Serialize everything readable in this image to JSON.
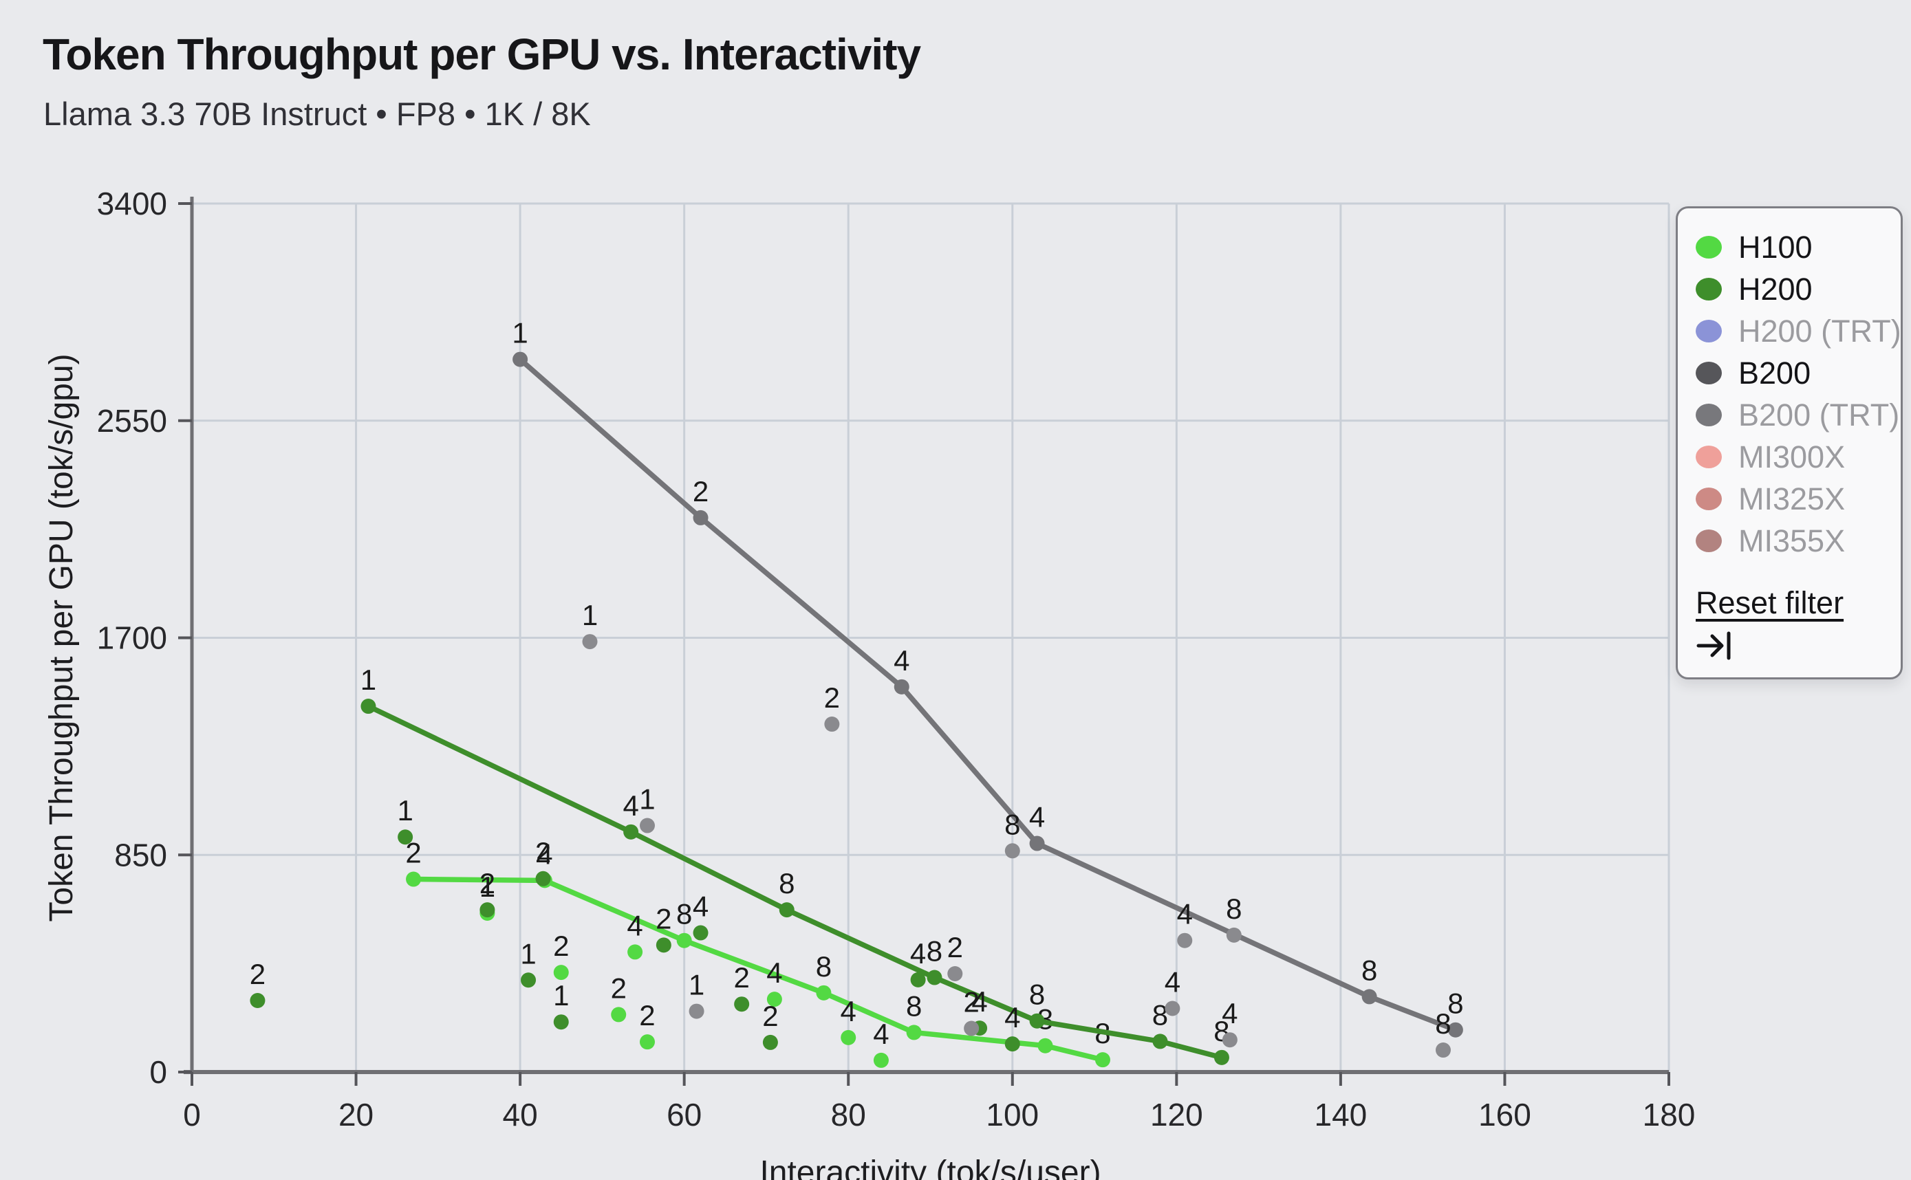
{
  "title": "Token Throughput per GPU vs. Interactivity",
  "subtitle": "Llama 3.3 70B Instruct • FP8 • 1K / 8K",
  "colors": {
    "background": "#e9eaed",
    "grid": "#c9cfd7",
    "axis_spine": "#6f6f73",
    "tick_text": "#27272a",
    "axis_title_text": "#1d1d20",
    "point_label_text": "#1a1a1a",
    "legend_bg": "#f9f9fa",
    "legend_border": "#7e7e84",
    "legend_text_active": "#141417",
    "legend_text_inactive": "#9b9b9f"
  },
  "legend": {
    "reset_label": "Reset filter",
    "collapse_icon": "arrow-to-bar",
    "items": [
      {
        "label": "H100",
        "color": "#53d943",
        "active": true
      },
      {
        "label": "H200",
        "color": "#3e8e2b",
        "active": true
      },
      {
        "label": "H200 (TRT)",
        "color": "#8b93d7",
        "active": false
      },
      {
        "label": "B200",
        "color": "#56565a",
        "active": true
      },
      {
        "label": "B200 (TRT)",
        "color": "#78787c",
        "active": false
      },
      {
        "label": "MI300X",
        "color": "#efa09a",
        "active": false
      },
      {
        "label": "MI325X",
        "color": "#cd8a85",
        "active": false
      },
      {
        "label": "MI355X",
        "color": "#b28380",
        "active": false
      }
    ]
  },
  "chart_data": {
    "type": "scatter",
    "title": "Token Throughput per GPU vs. Interactivity",
    "xlabel": "Interactivity (tok/s/user)",
    "ylabel": "Token Throughput per GPU (tok/s/gpu)",
    "xlim": [
      0,
      180
    ],
    "ylim": [
      0,
      3400
    ],
    "xticks": [
      0,
      20,
      40,
      60,
      80,
      100,
      120,
      140,
      160,
      180
    ],
    "yticks": [
      0,
      850,
      1700,
      2550,
      3400
    ],
    "grid": true,
    "legend_position": "top-right",
    "point_labels_mean": "GPU / tensor-parallel count per config",
    "series": [
      {
        "name": "H100",
        "color": "#53d943",
        "scatter_color": "#53d943",
        "line": [
          {
            "x": 27,
            "y": 755,
            "label": "2"
          },
          {
            "x": 43,
            "y": 750,
            "label": "4"
          },
          {
            "x": 60,
            "y": 515,
            "label": "8"
          },
          {
            "x": 77,
            "y": 310,
            "label": "8"
          },
          {
            "x": 88,
            "y": 155,
            "label": "8"
          },
          {
            "x": 104,
            "y": 103,
            "label": "8"
          },
          {
            "x": 111,
            "y": 48,
            "label": "8"
          }
        ],
        "scatter": [
          {
            "x": 36,
            "y": 622,
            "label": "1"
          },
          {
            "x": 45,
            "y": 390,
            "label": "2"
          },
          {
            "x": 52,
            "y": 225,
            "label": "2"
          },
          {
            "x": 54,
            "y": 470,
            "label": "4"
          },
          {
            "x": 55.5,
            "y": 118,
            "label": "2"
          },
          {
            "x": 71,
            "y": 285,
            "label": "4"
          },
          {
            "x": 80,
            "y": 135,
            "label": "4"
          },
          {
            "x": 84,
            "y": 46,
            "label": "4"
          }
        ]
      },
      {
        "name": "H200",
        "color": "#3e8e2b",
        "scatter_color": "#3e8e2b",
        "line": [
          {
            "x": 21.5,
            "y": 1432,
            "label": "1"
          },
          {
            "x": 53.5,
            "y": 940,
            "label": "4"
          },
          {
            "x": 72.5,
            "y": 635,
            "label": "8"
          },
          {
            "x": 90.5,
            "y": 370,
            "label": "8"
          },
          {
            "x": 103,
            "y": 200,
            "label": "8"
          },
          {
            "x": 118,
            "y": 120,
            "label": "8"
          },
          {
            "x": 125.5,
            "y": 57,
            "label": "8"
          }
        ],
        "scatter": [
          {
            "x": 8,
            "y": 280,
            "label": "2"
          },
          {
            "x": 26,
            "y": 920,
            "label": "1"
          },
          {
            "x": 36,
            "y": 635,
            "label": "2"
          },
          {
            "x": 42.8,
            "y": 757,
            "label": "2"
          },
          {
            "x": 41,
            "y": 360,
            "label": "1"
          },
          {
            "x": 45,
            "y": 196,
            "label": "1"
          },
          {
            "x": 57.5,
            "y": 497,
            "label": "2"
          },
          {
            "x": 62,
            "y": 545,
            "label": "4"
          },
          {
            "x": 67,
            "y": 266,
            "label": "2"
          },
          {
            "x": 70.5,
            "y": 116,
            "label": "2"
          },
          {
            "x": 88.5,
            "y": 361,
            "label": "4"
          },
          {
            "x": 96,
            "y": 172,
            "label": "4"
          },
          {
            "x": 100,
            "y": 110,
            "label": "4"
          }
        ]
      },
      {
        "name": "B200",
        "color": "#747478",
        "scatter_color": "#8a8a8e",
        "line": [
          {
            "x": 40,
            "y": 2790,
            "label": "1"
          },
          {
            "x": 62,
            "y": 2170,
            "label": "2"
          },
          {
            "x": 86.5,
            "y": 1508,
            "label": "4"
          },
          {
            "x": 103,
            "y": 895,
            "label": "4"
          },
          {
            "x": 143.5,
            "y": 295,
            "label": "8"
          },
          {
            "x": 154,
            "y": 165,
            "label": "8"
          }
        ],
        "scatter": [
          {
            "x": 48.5,
            "y": 1685,
            "label": "1"
          },
          {
            "x": 55.5,
            "y": 965,
            "label": "1"
          },
          {
            "x": 61.5,
            "y": 238,
            "label": "1"
          },
          {
            "x": 78,
            "y": 1362,
            "label": "2"
          },
          {
            "x": 93,
            "y": 385,
            "label": "2"
          },
          {
            "x": 95,
            "y": 171,
            "label": "2"
          },
          {
            "x": 100,
            "y": 866,
            "label": "8"
          },
          {
            "x": 119.5,
            "y": 249,
            "label": "4"
          },
          {
            "x": 121,
            "y": 515,
            "label": "4"
          },
          {
            "x": 126.5,
            "y": 126,
            "label": "4"
          },
          {
            "x": 127,
            "y": 536,
            "label": "8"
          },
          {
            "x": 152.5,
            "y": 86,
            "label": "8"
          }
        ]
      }
    ]
  }
}
